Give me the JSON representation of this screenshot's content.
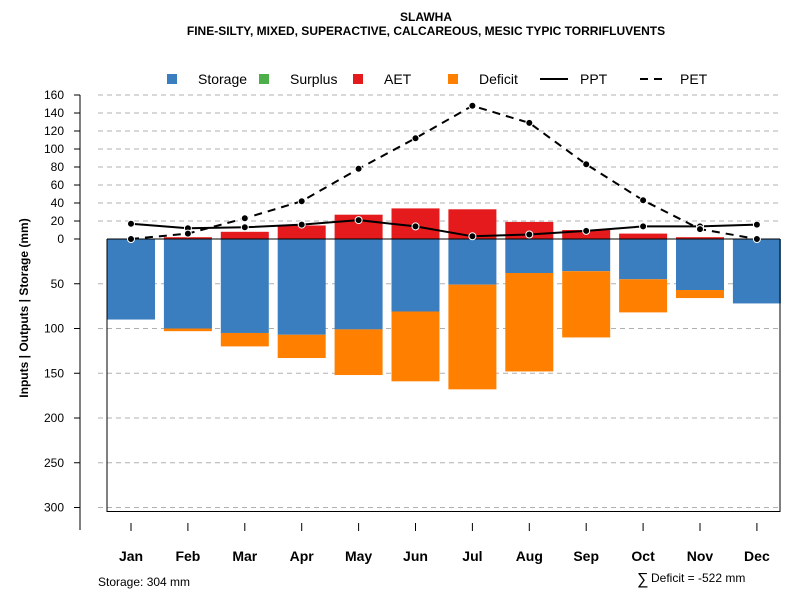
{
  "chart_data": {
    "type": "bar",
    "title": "SLAWHA",
    "subtitle": "FINE-SILTY, MIXED, SUPERACTIVE, CALCAREOUS, MESIC TYPIC TORRIFLUVENTS",
    "ylabel": "Inputs | Outputs | Storage    (mm)",
    "categories": [
      "Jan",
      "Feb",
      "Mar",
      "Apr",
      "May",
      "Jun",
      "Jul",
      "Aug",
      "Sep",
      "Oct",
      "Nov",
      "Dec"
    ],
    "upper_ticks": [
      "160",
      "140",
      "120",
      "100",
      "80",
      "60",
      "40",
      "20",
      "0"
    ],
    "lower_ticks": [
      "50",
      "100",
      "150",
      "200",
      "250",
      "300"
    ],
    "ylim_upper": [
      0,
      160
    ],
    "ylim_lower": [
      0,
      304
    ],
    "legend": [
      {
        "label": "Storage",
        "kind": "box",
        "color": "#3A7EBF"
      },
      {
        "label": "Surplus",
        "kind": "box",
        "color": "#4DAF4A"
      },
      {
        "label": "AET",
        "kind": "box",
        "color": "#E41A1C"
      },
      {
        "label": "Deficit",
        "kind": "box",
        "color": "#FF8000"
      },
      {
        "label": "PPT",
        "kind": "solid",
        "color": "#000000"
      },
      {
        "label": "PET",
        "kind": "dashed",
        "color": "#000000"
      }
    ],
    "series": [
      {
        "name": "AET",
        "values": [
          0,
          2,
          8,
          15,
          27,
          34,
          33,
          19,
          10,
          6,
          2,
          0
        ]
      },
      {
        "name": "Storage",
        "values": [
          90,
          100,
          105,
          107,
          101,
          81,
          51,
          38,
          36,
          45,
          57,
          72
        ]
      },
      {
        "name": "Deficit",
        "values": [
          0,
          3,
          15,
          26,
          51,
          78,
          117,
          110,
          74,
          37,
          9,
          0
        ]
      },
      {
        "name": "PPT",
        "values": [
          17,
          12,
          13,
          16,
          21,
          14,
          3,
          5,
          9,
          14,
          14,
          16
        ]
      },
      {
        "name": "PET",
        "values": [
          0,
          6,
          23,
          42,
          78,
          112,
          148,
          129,
          83,
          43,
          11,
          0
        ]
      }
    ],
    "footer_storage": "Storage: 304 mm",
    "footer_deficit_symbol": "∑",
    "footer_deficit": "Deficit = -522 mm"
  }
}
